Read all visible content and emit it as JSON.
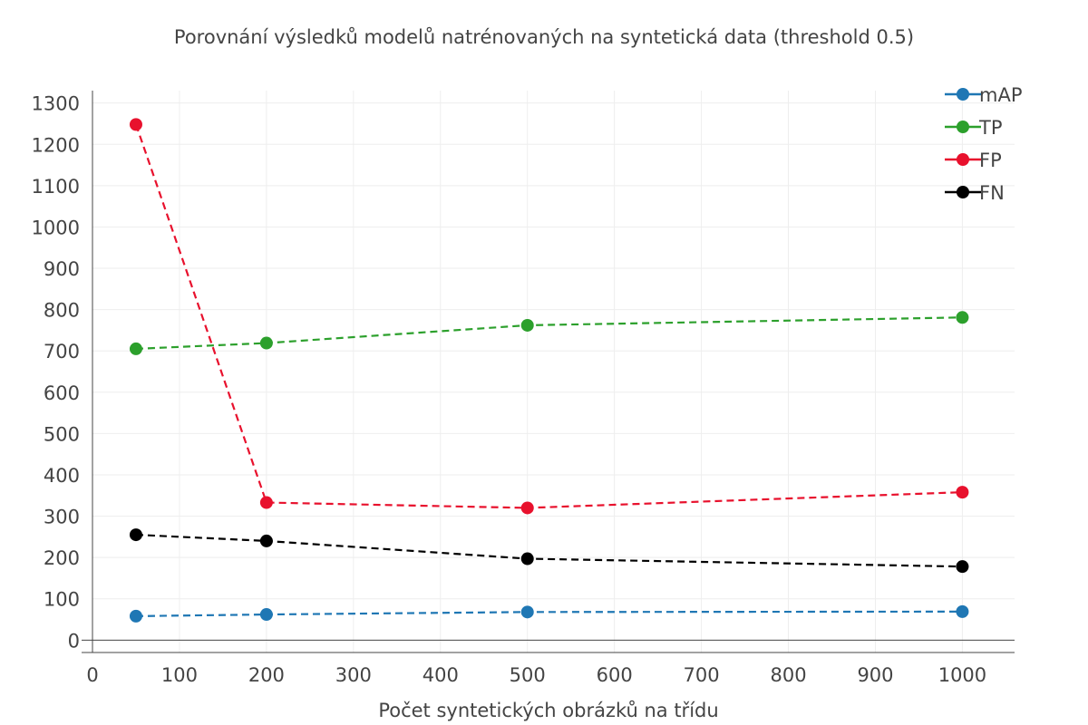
{
  "chart_data": {
    "type": "line",
    "title": "Porovnání výsledků modelů natrénovaných na syntetická data (threshold 0.5)",
    "xlabel": "Počet syntetických obrázků na třídu",
    "ylabel": "",
    "x": [
      50,
      200,
      500,
      1000
    ],
    "xlim": [
      0,
      1060
    ],
    "ylim": [
      -30,
      1330
    ],
    "xticks": [
      0,
      100,
      200,
      300,
      400,
      500,
      600,
      700,
      800,
      900,
      1000
    ],
    "yticks": [
      0,
      100,
      200,
      300,
      400,
      500,
      600,
      700,
      800,
      900,
      1000,
      1100,
      1200,
      1300
    ],
    "grid": true,
    "legend_position": "top-right",
    "line_style": "dashed",
    "marker": "circle",
    "series": [
      {
        "name": "mAP",
        "color": "#1f77b4",
        "values": [
          58,
          62,
          68,
          69
        ]
      },
      {
        "name": "TP",
        "color": "#2ca02c",
        "values": [
          705,
          719,
          762,
          781
        ]
      },
      {
        "name": "FP",
        "color": "#e8112d",
        "values": [
          1248,
          333,
          320,
          358
        ]
      },
      {
        "name": "FN",
        "color": "#000000",
        "values": [
          255,
          240,
          197,
          178
        ]
      }
    ]
  }
}
